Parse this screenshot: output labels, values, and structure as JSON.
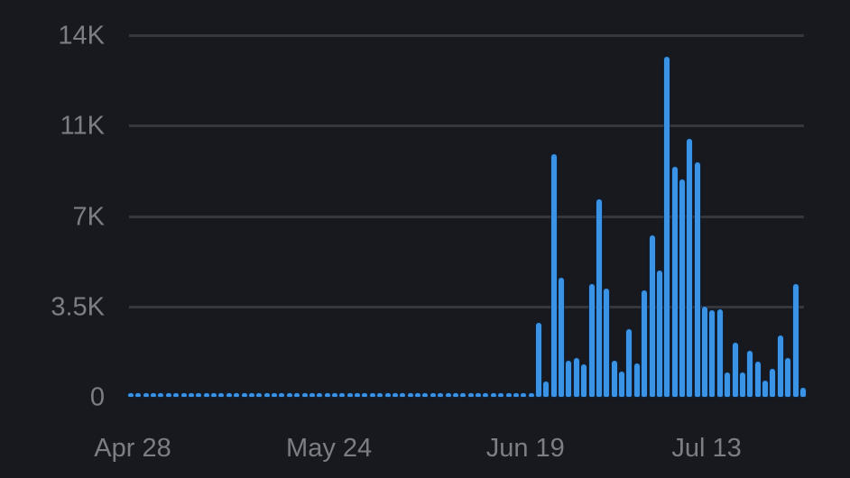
{
  "chart_data": {
    "type": "bar",
    "title": "",
    "xlabel": "",
    "ylabel": "",
    "ylim": [
      0,
      14000
    ],
    "grid": true,
    "legend": null,
    "bar_color": "#3a93e4",
    "background": "#17191e",
    "y_ticks": [
      {
        "label": "0",
        "value": 0
      },
      {
        "label": "3.5K",
        "value": 3500
      },
      {
        "label": "7K",
        "value": 7000
      },
      {
        "label": "11K",
        "value": 10500
      },
      {
        "label": "14K",
        "value": 14000
      }
    ],
    "x_ticks": [
      {
        "label": "Apr 28",
        "index": 0
      },
      {
        "label": "May 24",
        "index": 26
      },
      {
        "label": "Jun 19",
        "index": 52
      },
      {
        "label": "Jul 13",
        "index": 76
      }
    ],
    "start_date": "Apr 28",
    "values": [
      40,
      40,
      40,
      40,
      40,
      40,
      40,
      150,
      40,
      40,
      40,
      40,
      40,
      150,
      40,
      40,
      40,
      40,
      40,
      40,
      40,
      40,
      40,
      40,
      80,
      40,
      40,
      40,
      40,
      40,
      40,
      40,
      40,
      40,
      40,
      40,
      80,
      40,
      40,
      40,
      40,
      40,
      40,
      40,
      40,
      40,
      40,
      40,
      40,
      40,
      40,
      40,
      40,
      40,
      2870,
      600,
      9380,
      4620,
      1400,
      1500,
      1260,
      4375,
      7630,
      4200,
      1400,
      980,
      2625,
      1300,
      4130,
      6265,
      4900,
      13160,
      8890,
      8400,
      9975,
      9065,
      3500,
      3360,
      3395,
      945,
      2100,
      945,
      1785,
      1365,
      630,
      1085,
      2380,
      1505,
      4375,
      350
    ]
  }
}
